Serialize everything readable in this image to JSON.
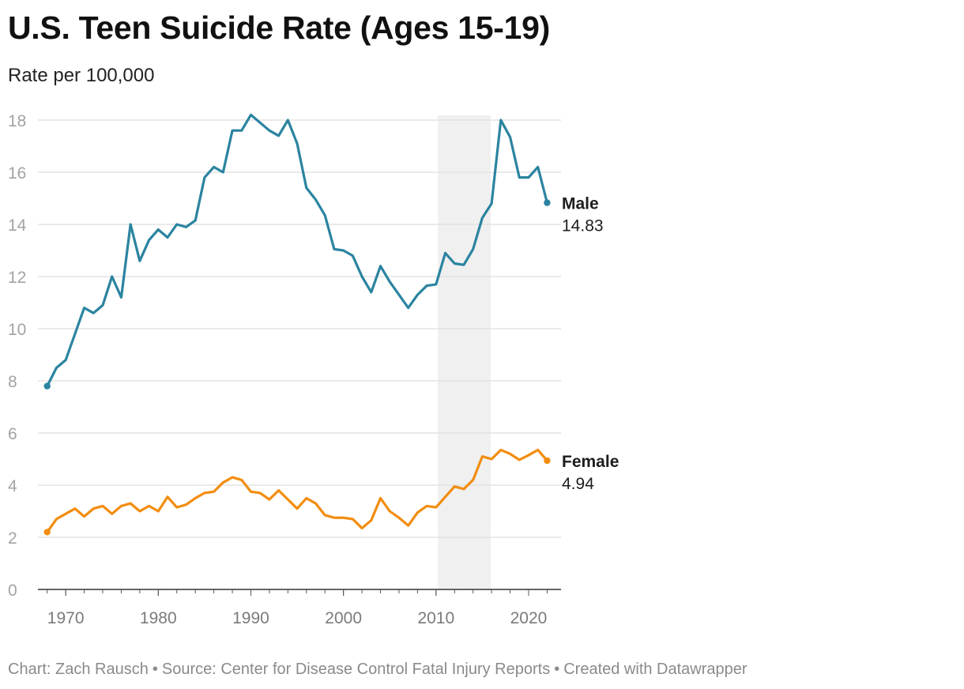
{
  "colors": {
    "male": "#2b84a0",
    "female": "#f28d10",
    "highlight": "#f0f0f0",
    "grid": "#dedede",
    "axis_text": "#a3a3a3",
    "axis_text_x": "#7b7b7b"
  },
  "footer": {
    "chart_by": "Chart: Zach Rausch",
    "source": "Source: Center for Disease Control Fatal Injury Reports",
    "created_with": "Created with Datawrapper",
    "separator": "•"
  },
  "chart_data": {
    "type": "line",
    "title": "U.S. Teen Suicide Rate (Ages 15-19)",
    "subtitle": "Rate per 100,000",
    "xlabel": "",
    "ylabel": "Rate per 100,000",
    "xlim": [
      1967,
      2023.5
    ],
    "ylim": [
      0,
      18
    ],
    "x_ticks": [
      1970,
      1980,
      1990,
      2000,
      2010,
      2020
    ],
    "y_ticks": [
      0,
      2,
      4,
      6,
      8,
      10,
      12,
      14,
      16,
      18
    ],
    "grid": true,
    "highlight_band": {
      "x_start": 2010.2,
      "x_end": 2015.9
    },
    "x": [
      1968,
      1969,
      1970,
      1971,
      1972,
      1973,
      1974,
      1975,
      1976,
      1977,
      1978,
      1979,
      1980,
      1981,
      1982,
      1983,
      1984,
      1985,
      1986,
      1987,
      1988,
      1989,
      1990,
      1991,
      1992,
      1993,
      1994,
      1995,
      1996,
      1997,
      1998,
      1999,
      2000,
      2001,
      2002,
      2003,
      2004,
      2005,
      2006,
      2007,
      2008,
      2009,
      2010,
      2011,
      2012,
      2013,
      2014,
      2015,
      2016,
      2017,
      2018,
      2019,
      2020,
      2021,
      2022
    ],
    "series": [
      {
        "name": "Male",
        "end_label": "Male",
        "end_value_label": "14.83",
        "values": [
          7.8,
          8.5,
          8.8,
          9.8,
          10.8,
          10.6,
          10.9,
          12.0,
          11.2,
          14.0,
          12.6,
          13.4,
          13.8,
          13.5,
          14.0,
          13.9,
          14.15,
          15.8,
          16.2,
          16.0,
          17.6,
          17.6,
          18.2,
          17.9,
          17.6,
          17.4,
          18.0,
          17.1,
          15.4,
          14.95,
          14.35,
          13.05,
          13.0,
          12.8,
          12.0,
          11.4,
          12.4,
          11.8,
          11.3,
          10.8,
          11.3,
          11.65,
          11.7,
          12.9,
          12.5,
          12.45,
          13.05,
          14.25,
          14.8,
          18.0,
          17.35,
          15.8,
          15.8,
          16.2,
          14.83
        ]
      },
      {
        "name": "Female",
        "end_label": "Female",
        "end_value_label": "4.94",
        "values": [
          2.2,
          2.7,
          2.9,
          3.1,
          2.8,
          3.1,
          3.2,
          2.9,
          3.2,
          3.3,
          3.0,
          3.2,
          3.0,
          3.55,
          3.15,
          3.25,
          3.5,
          3.7,
          3.75,
          4.1,
          4.3,
          4.2,
          3.75,
          3.7,
          3.45,
          3.8,
          3.45,
          3.1,
          3.5,
          3.3,
          2.85,
          2.75,
          2.75,
          2.7,
          2.35,
          2.65,
          3.5,
          3.0,
          2.75,
          2.45,
          2.95,
          3.2,
          3.15,
          3.55,
          3.95,
          3.85,
          4.2,
          5.1,
          5.0,
          5.35,
          5.2,
          4.97,
          5.15,
          5.35,
          4.94
        ]
      }
    ]
  }
}
